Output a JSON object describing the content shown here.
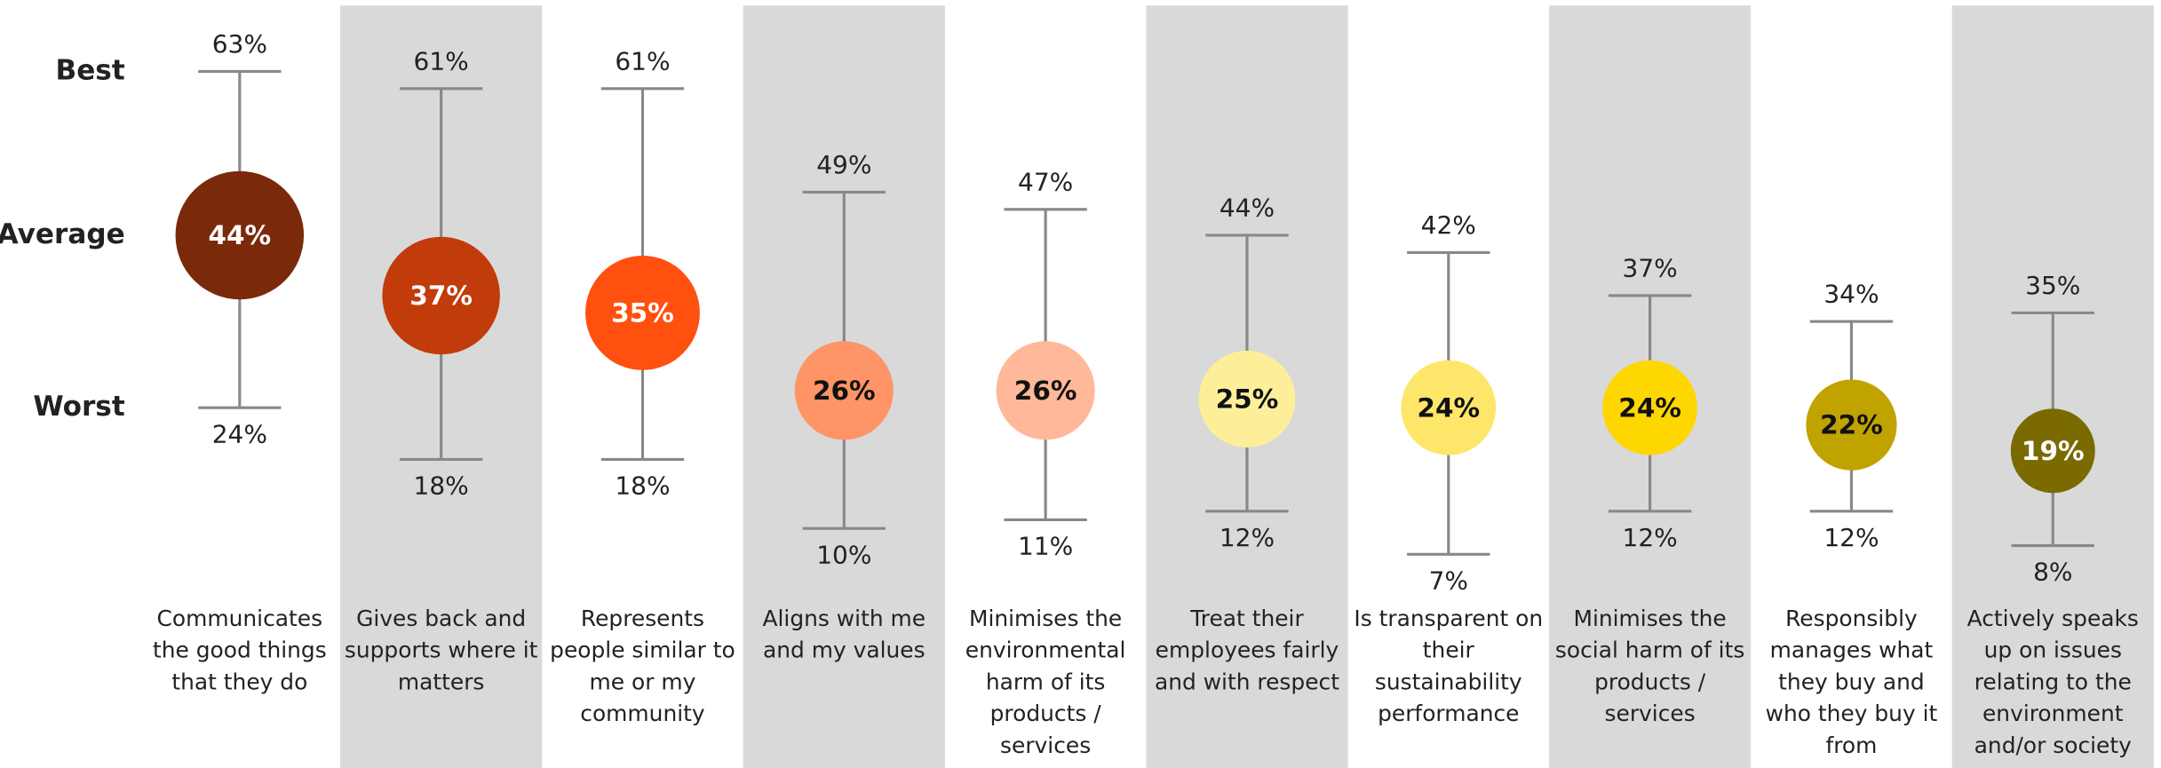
{
  "chart_data": {
    "type": "range",
    "row_labels": [
      "Best",
      "Average",
      "Worst"
    ],
    "categories": [
      "Communicates the good things that they do",
      "Gives back and supports where it matters",
      "Represents people similar to me or my community",
      "Aligns with me and my values",
      "Minimises the environmental harm of its products / services",
      "Treat their employees fairly and with respect",
      "Is transparent on their sustainability performance",
      "Minimises the social harm of its products / services",
      "Responsibly manages what they buy and who they buy it from",
      "Actively speaks up on issues relating to the environment and/or society"
    ],
    "high": {
      "values": [
        63,
        61,
        61,
        49,
        47,
        44,
        42,
        37,
        34,
        35
      ],
      "value_labels": [
        "63%",
        "61%",
        "61%",
        "49%",
        "47%",
        "44%",
        "42%",
        "37%",
        "34%",
        "35%"
      ]
    },
    "mid": {
      "values": [
        44,
        37,
        35,
        26,
        26,
        25,
        24,
        24,
        22,
        19
      ],
      "value_labels": [
        "44%",
        "37%",
        "35%",
        "26%",
        "26%",
        "25%",
        "24%",
        "24%",
        "22%",
        "19%"
      ]
    },
    "low": {
      "values": [
        24,
        18,
        18,
        10,
        11,
        12,
        7,
        12,
        12,
        8
      ],
      "value_labels": [
        "24%",
        "18%",
        "18%",
        "10%",
        "11%",
        "12%",
        "7%",
        "12%",
        "12%",
        "8%"
      ]
    },
    "colors": [
      "#7a2a0a",
      "#c23b0a",
      "#ff5010",
      "#ff9466",
      "#ffb899",
      "#fdef9a",
      "#fde66a",
      "#ffd700",
      "#c1a300",
      "#7a6a00"
    ],
    "ylim": [
      0,
      70
    ]
  }
}
